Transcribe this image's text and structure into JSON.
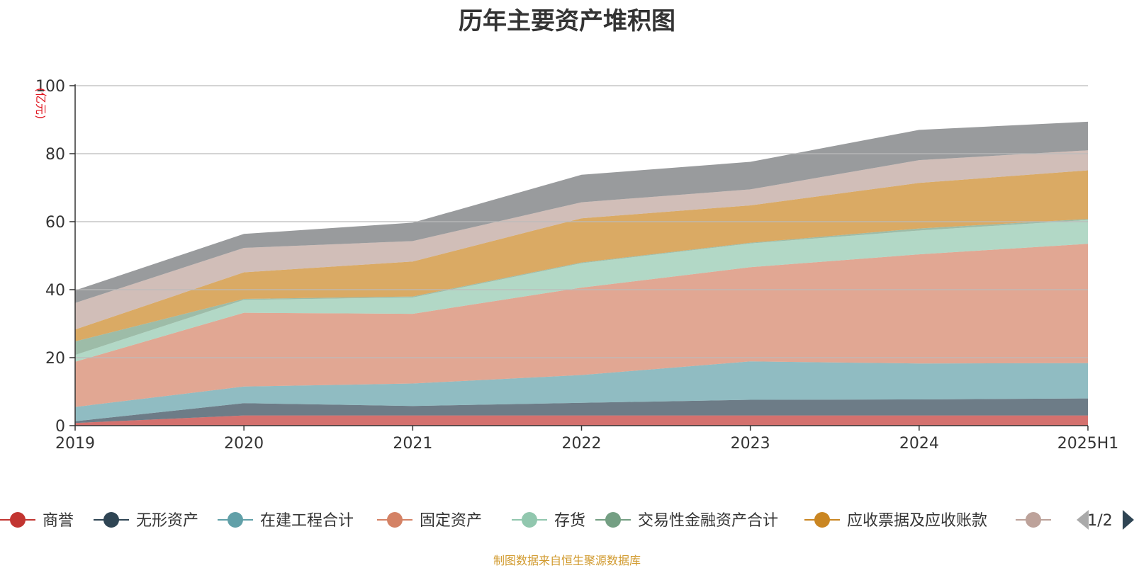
{
  "chart_data": {
    "type": "area",
    "stacked": true,
    "title": "历年主要资产堆积图",
    "ylabel": "(亿元)",
    "x": [
      "2019",
      "2020",
      "2021",
      "2022",
      "2023",
      "2024",
      "2025H1"
    ],
    "ylim": [
      0,
      100
    ],
    "yticks": [
      0,
      20,
      40,
      60,
      80,
      100
    ],
    "grid": true,
    "series": [
      {
        "name": "商誉",
        "color": "#c23531",
        "values": [
          0.8,
          3.0,
          3.0,
          3.0,
          3.0,
          3.0,
          3.0
        ]
      },
      {
        "name": "无形资产",
        "color": "#2f4554",
        "values": [
          0.5,
          3.6,
          2.8,
          3.7,
          4.6,
          4.7,
          5.0
        ]
      },
      {
        "name": "在建工程合计",
        "color": "#61a0a8",
        "values": [
          4.2,
          4.9,
          6.6,
          8.2,
          11.3,
          10.6,
          10.4
        ]
      },
      {
        "name": "固定资产",
        "color": "#d48265",
        "values": [
          13.3,
          21.7,
          20.5,
          25.7,
          27.7,
          32.1,
          35.1
        ]
      },
      {
        "name": "存货",
        "color": "#91c7ae",
        "values": [
          2.0,
          3.8,
          4.8,
          7.2,
          7.0,
          7.0,
          7.0
        ]
      },
      {
        "name": "交易性金融资产合计",
        "color": "#749f83",
        "values": [
          4.0,
          0.3,
          0.3,
          0.2,
          0.2,
          0.6,
          0.3
        ]
      },
      {
        "name": "应收票据及应收账款",
        "color": "#ca8622",
        "values": [
          3.5,
          7.8,
          10.3,
          13.0,
          11.0,
          13.4,
          14.3
        ]
      },
      {
        "name": "",
        "color": "#bda29a",
        "values": [
          7.8,
          7.2,
          6.0,
          4.7,
          4.7,
          6.7,
          5.9
        ]
      },
      {
        "name": "",
        "color": "#6e7074",
        "values": [
          3.7,
          4.1,
          5.4,
          8.1,
          8.1,
          8.9,
          8.4
        ]
      }
    ],
    "legend": {
      "position": "bottom",
      "page": "1/2"
    }
  },
  "source_note": "制图数据来自恒生聚源数据库"
}
